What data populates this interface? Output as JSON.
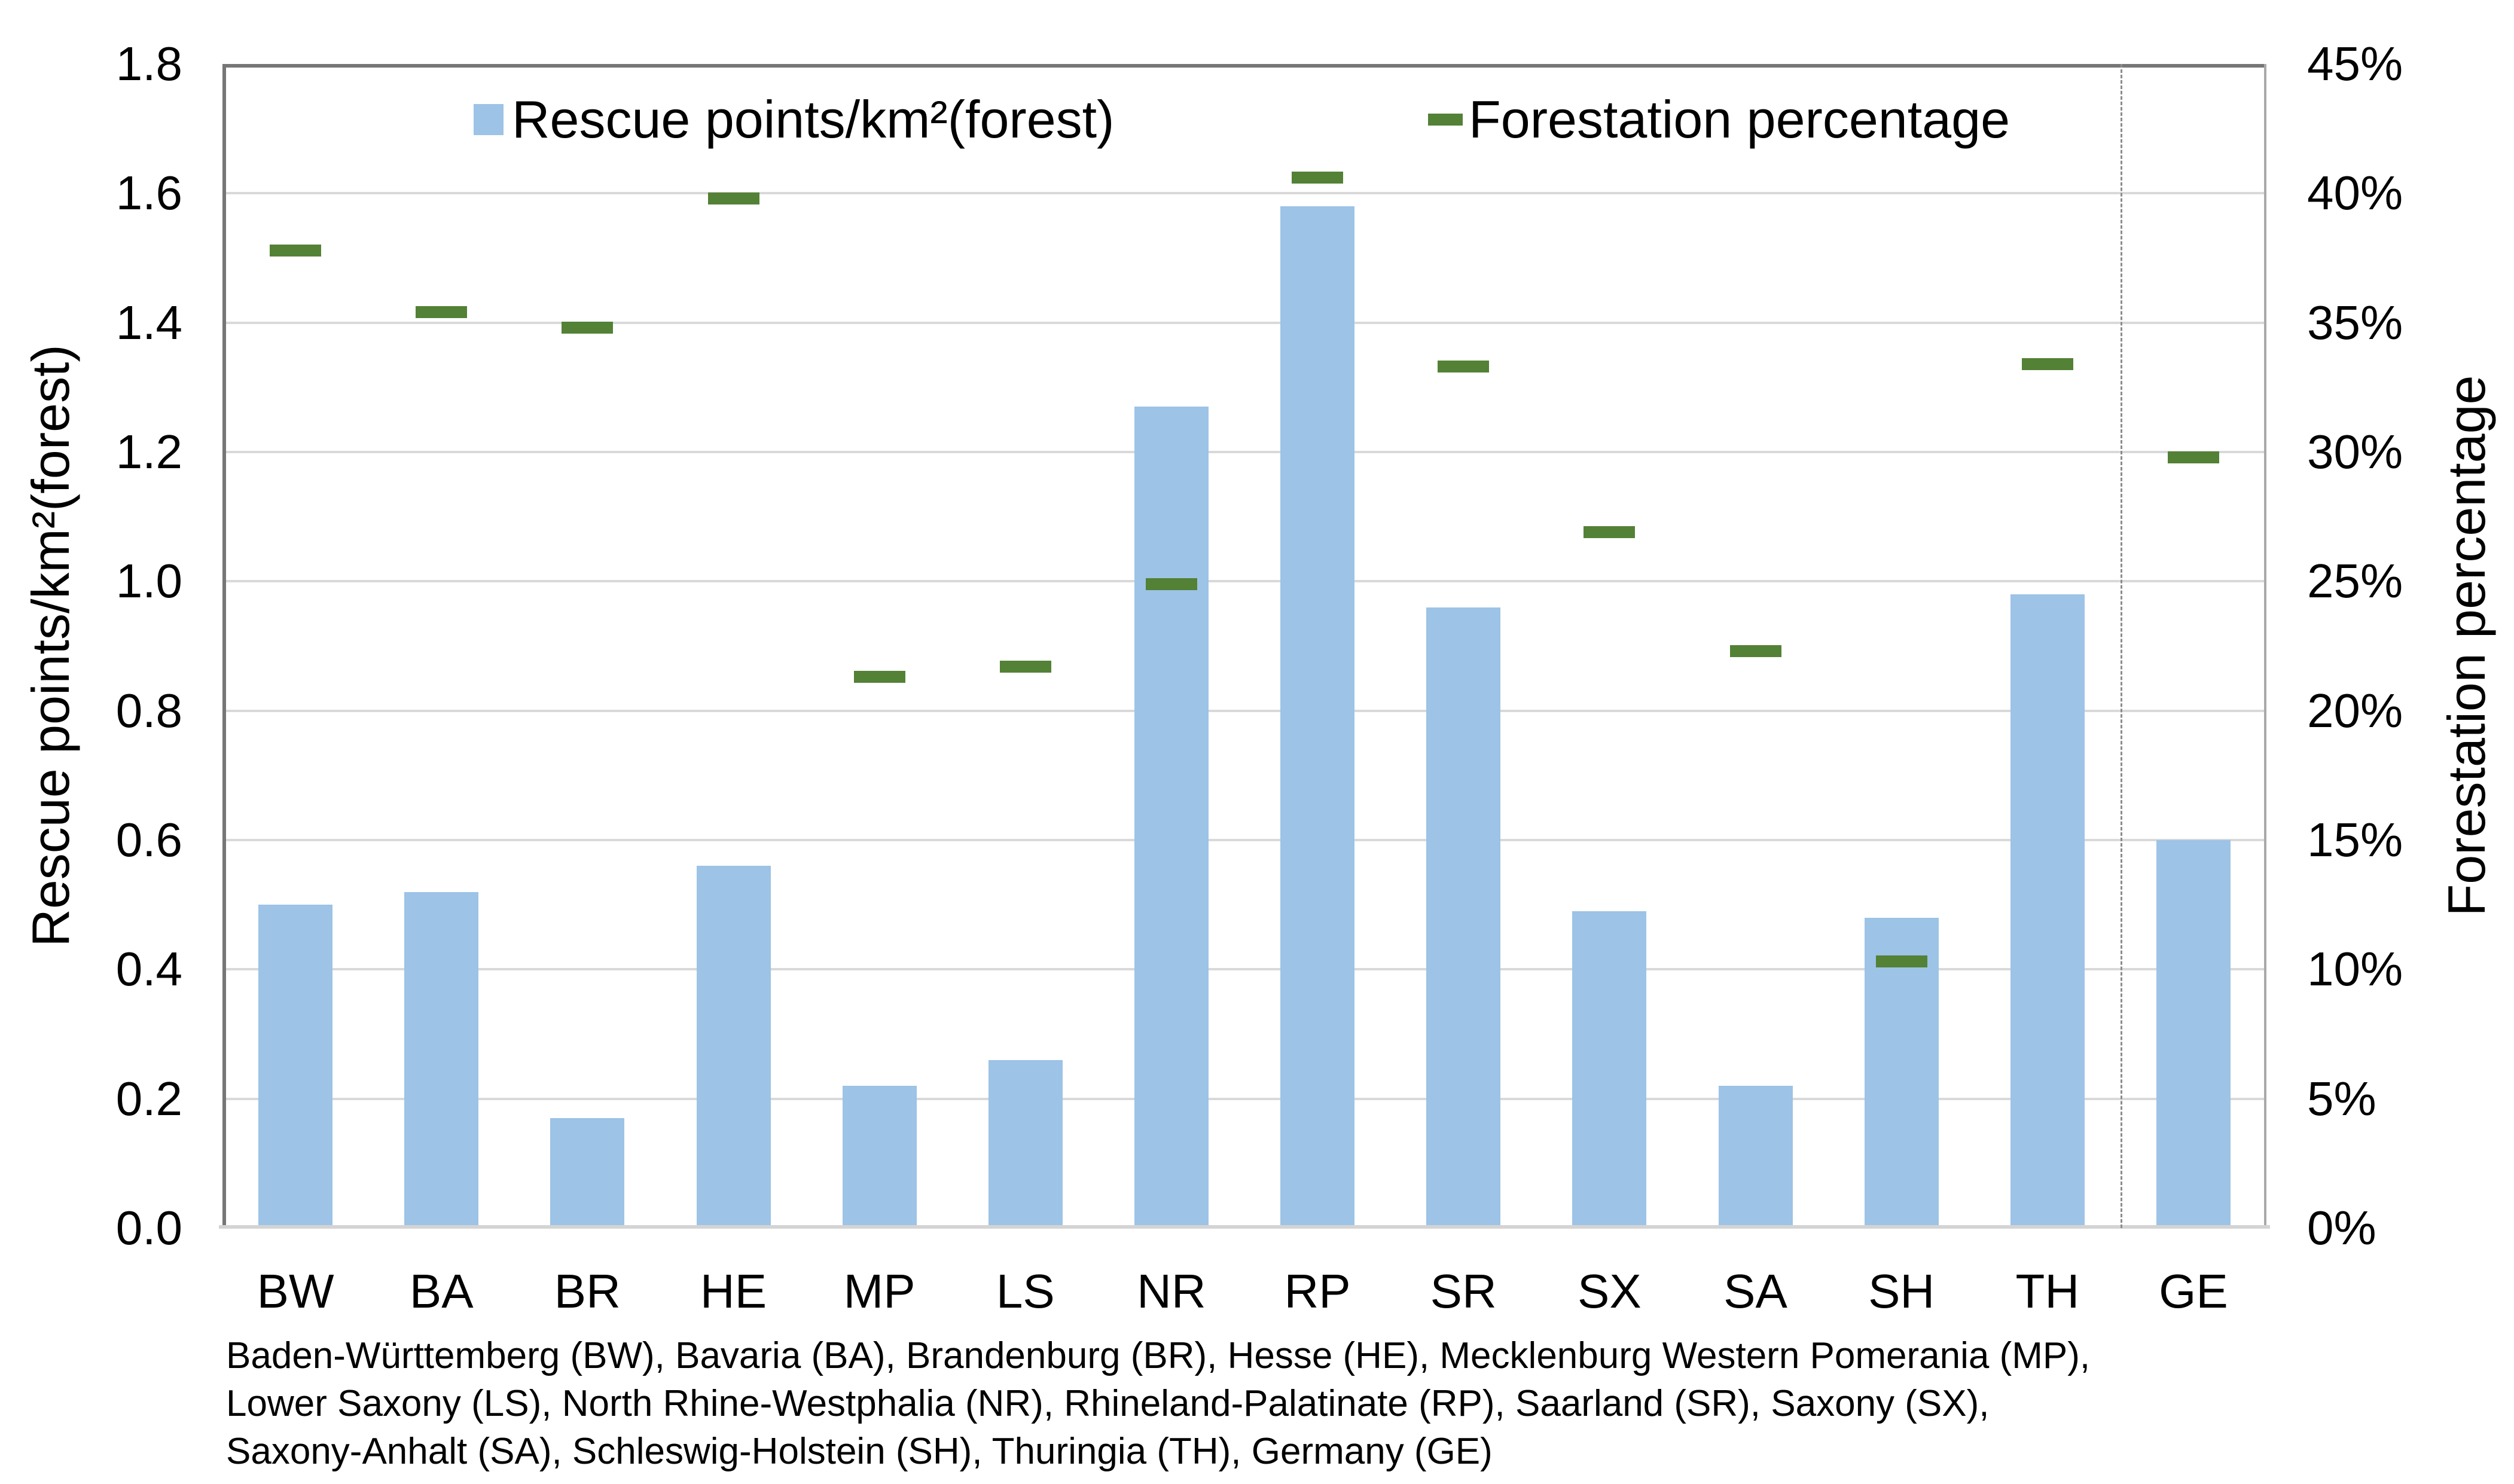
{
  "chart_data": {
    "type": "bar",
    "title": "",
    "categories": [
      "BW",
      "BA",
      "BR",
      "HE",
      "MP",
      "LS",
      "NR",
      "RP",
      "SR",
      "SX",
      "SA",
      "SH",
      "TH",
      "GE"
    ],
    "series": [
      {
        "name": "Rescue points/km²(forest)",
        "type": "bar",
        "axis": "left",
        "color": "#9DC3E6",
        "values": [
          0.5,
          0.52,
          0.17,
          0.56,
          0.22,
          0.26,
          1.27,
          1.58,
          0.96,
          0.49,
          0.22,
          0.48,
          0.98,
          0.6
        ]
      },
      {
        "name": "Forestation percentage",
        "type": "dash",
        "axis": "right",
        "color": "#538135",
        "values": [
          37.8,
          35.4,
          34.8,
          39.8,
          21.3,
          21.7,
          24.9,
          40.6,
          33.3,
          26.9,
          22.3,
          10.3,
          33.4,
          29.8
        ]
      }
    ],
    "left_axis": {
      "label": "Rescue points/km²(forest)",
      "min": 0.0,
      "max": 1.8,
      "tick_step": 0.2,
      "ticks": [
        "1.8",
        "1.6",
        "1.4",
        "1.2",
        "1.0",
        "0.8",
        "0.6",
        "0.4",
        "0.2",
        "0.0"
      ]
    },
    "right_axis": {
      "label": "Forestation percentage",
      "min": 0,
      "max": 45,
      "tick_step": 5,
      "ticks": [
        "45%",
        "40%",
        "35%",
        "30%",
        "25%",
        "20%",
        "15%",
        "10%",
        "5%",
        "0%"
      ]
    },
    "legend_position": "top-inside",
    "grid": "horizontal",
    "separator_before_category": "GE",
    "caption_lines": [
      "Baden-Württemberg (BW), Bavaria (BA), Brandenburg (BR), Hesse (HE), Mecklenburg Western Pomerania (MP),",
      "Lower Saxony (LS), North Rhine-Westphalia (NR), Rhineland-Palatinate (RP), Saarland (SR), Saxony (SX),",
      "Saxony-Anhalt (SA), Schleswig-Holstein (SH), Thuringia (TH), Germany (GE)"
    ],
    "colors": {
      "bar": "#9DC3E6",
      "dash": "#538135",
      "gridline": "#D9D9D9",
      "axis_dark": "#767676",
      "axis_light": "#A9A9A9",
      "baseline": "#D4D4D4",
      "separator": "#8C8C8C",
      "text": "#000000"
    }
  }
}
